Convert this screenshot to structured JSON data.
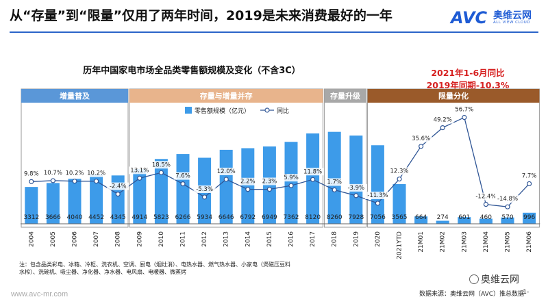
{
  "header": {
    "title": "从“存量”到“限量”仅用了两年时间，2019是未来消费最好的一年",
    "logo_text": "AVC",
    "logo_cn": "奥维云网",
    "logo_en": "ALL VIEW CLOUD"
  },
  "colors": {
    "bar": "#3d9be9",
    "line": "#2f5595",
    "band_blue": "#5a97d8",
    "band_orange": "#e8b48c",
    "band_gray": "#a8a8a8",
    "band_brown": "#9a5a2a",
    "accent_red": "#d62020"
  },
  "chart_data": {
    "type": "bar+line",
    "title": "历年中国家电市场全品类零售额规模及变化（不含3C）",
    "categories": [
      "2004",
      "2005",
      "2006",
      "2007",
      "2008",
      "2009",
      "2010",
      "2011",
      "2012",
      "2013",
      "2014",
      "2015",
      "2016",
      "2017",
      "2018",
      "2019",
      "2020",
      "2021YTD",
      "21M01",
      "21M02",
      "21M03",
      "21M04",
      "21M05",
      "21M06"
    ],
    "series": [
      {
        "name": "零售额规模（亿元）",
        "kind": "bar",
        "values": [
          3312,
          3666,
          4040,
          4452,
          4345,
          4914,
          5823,
          6266,
          5934,
          6646,
          6792,
          6949,
          7362,
          8120,
          8260,
          7928,
          7056,
          3565,
          664,
          274,
          601,
          460,
          570,
          996
        ]
      },
      {
        "name": "同比",
        "kind": "line",
        "unit": "%",
        "values": [
          9.8,
          10.7,
          10.2,
          10.2,
          -2.4,
          13.1,
          18.5,
          7.6,
          -5.3,
          12.0,
          2.2,
          2.3,
          5.9,
          11.8,
          1.7,
          -3.9,
          -11.3,
          12.3,
          35.6,
          49.2,
          56.7,
          -12.4,
          -14.8,
          7.7
        ]
      }
    ],
    "data_labels_bar": [
      "3312",
      "3666",
      "4040",
      "4452",
      "4345",
      "4914",
      "5823",
      "6266",
      "5934",
      "6646",
      "6792",
      "6949",
      "7362",
      "8120",
      "8260",
      "7928",
      "7056",
      "3565",
      "664",
      "274",
      "601",
      "460",
      "570",
      "996"
    ],
    "data_labels_line": [
      "9.8%",
      "10.7%",
      "10.2%",
      "10.2%",
      "-2.4%",
      "13.1%",
      "18.5%",
      "7.6%",
      "-5.3%",
      "12.0%",
      "2.2%",
      "2.3%",
      "5.9%",
      "11.8%",
      "1.7%",
      "-3.9%",
      "-11.3%",
      "12.3%",
      "35.6%",
      "49.2%",
      "56.7%",
      "-12.4%",
      "-14.8%",
      "7.7%"
    ],
    "phases": [
      {
        "label": "增量普及",
        "from": 0,
        "to": 4,
        "color": "#5a97d8"
      },
      {
        "label": "存量与增量并存",
        "from": 5,
        "to": 13,
        "color": "#e8b48c"
      },
      {
        "label": "存量升级",
        "from": 14,
        "to": 15,
        "color": "#a8a8a8"
      },
      {
        "label": "限量分化",
        "from": 16,
        "to": 23,
        "color": "#9a5a2a"
      }
    ],
    "legend_position": "top-center",
    "grid": false
  },
  "subtitle": {
    "line1": "2021年1-6月同比",
    "line2": "2019年同期-10.3%"
  },
  "footnote": {
    "line1": "注：包含品类彩电、冰箱、冷柜、洗衣机、空调、厨电（烟灶消）、电热水器、燃气热水器、小家电（煲磁压豆料",
    "line2": "水榨）、洗碗机、吸尘器、净化器、净水器、电风扇、电暖器、微蒸烤"
  },
  "footer": {
    "site": "www.avc-mr.com",
    "wechat": "奥维云网",
    "source": "数据来源：奥维云网（AVC）推总数据",
    "page": "-1-"
  }
}
